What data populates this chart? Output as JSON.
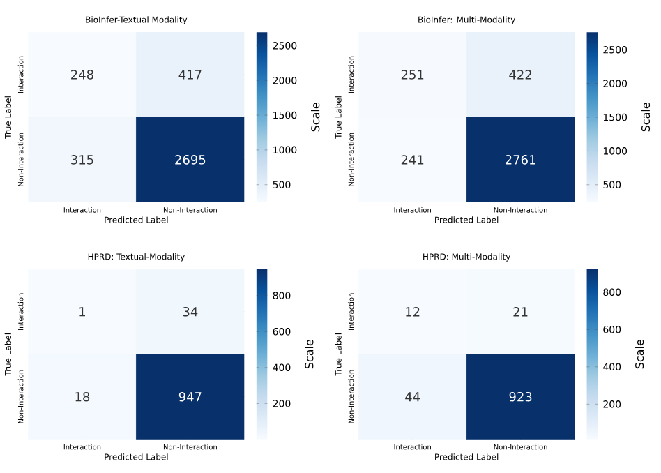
{
  "chart_data": [
    {
      "type": "heatmap",
      "title": "BioInfer-Textual Modality",
      "xlabel": "Predicted Label",
      "ylabel": "True Label",
      "clabel": "Scale",
      "categories": [
        "Interaction",
        "Non-Interaction"
      ],
      "y_categories": [
        "Interaction",
        "Non-Interaction"
      ],
      "cells": [
        [
          248,
          417
        ],
        [
          315,
          2695
        ]
      ],
      "clim": [
        248,
        2695
      ],
      "cticks": [
        500,
        1000,
        1500,
        2000,
        2500
      ],
      "data_labels": true
    },
    {
      "type": "heatmap",
      "title": "BioInfer: Multi-Modality",
      "xlabel": "Predicted Label",
      "ylabel": "True Label",
      "clabel": "Scale",
      "categories": [
        "Interaction",
        "Non-Interaction"
      ],
      "y_categories": [
        "Interaction",
        "Non-Interaction"
      ],
      "cells": [
        [
          251,
          422
        ],
        [
          241,
          2761
        ]
      ],
      "clim": [
        241,
        2761
      ],
      "cticks": [
        500,
        1000,
        1500,
        2000,
        2500
      ],
      "data_labels": true
    },
    {
      "type": "heatmap",
      "title": "HPRD: Textual-Modality",
      "xlabel": "Predicted Label",
      "ylabel": "True Label",
      "clabel": "Scale",
      "categories": [
        "Interaction",
        "Non-Interaction"
      ],
      "y_categories": [
        "Interaction",
        "Non-Interaction"
      ],
      "cells": [
        [
          1,
          34
        ],
        [
          18,
          947
        ]
      ],
      "clim": [
        1,
        947
      ],
      "cticks": [
        200,
        400,
        600,
        800
      ],
      "data_labels": true
    },
    {
      "type": "heatmap",
      "title": "HPRD: Multi-Modality",
      "xlabel": "Predicted Label",
      "ylabel": "True Label",
      "clabel": "Scale",
      "categories": [
        "Interaction",
        "Non-Interaction"
      ],
      "y_categories": [
        "Interaction",
        "Non-Interaction"
      ],
      "cells": [
        [
          12,
          21
        ],
        [
          44,
          923
        ]
      ],
      "clim": [
        12,
        923
      ],
      "cticks": [
        200,
        400,
        600,
        800
      ],
      "data_labels": true
    }
  ]
}
